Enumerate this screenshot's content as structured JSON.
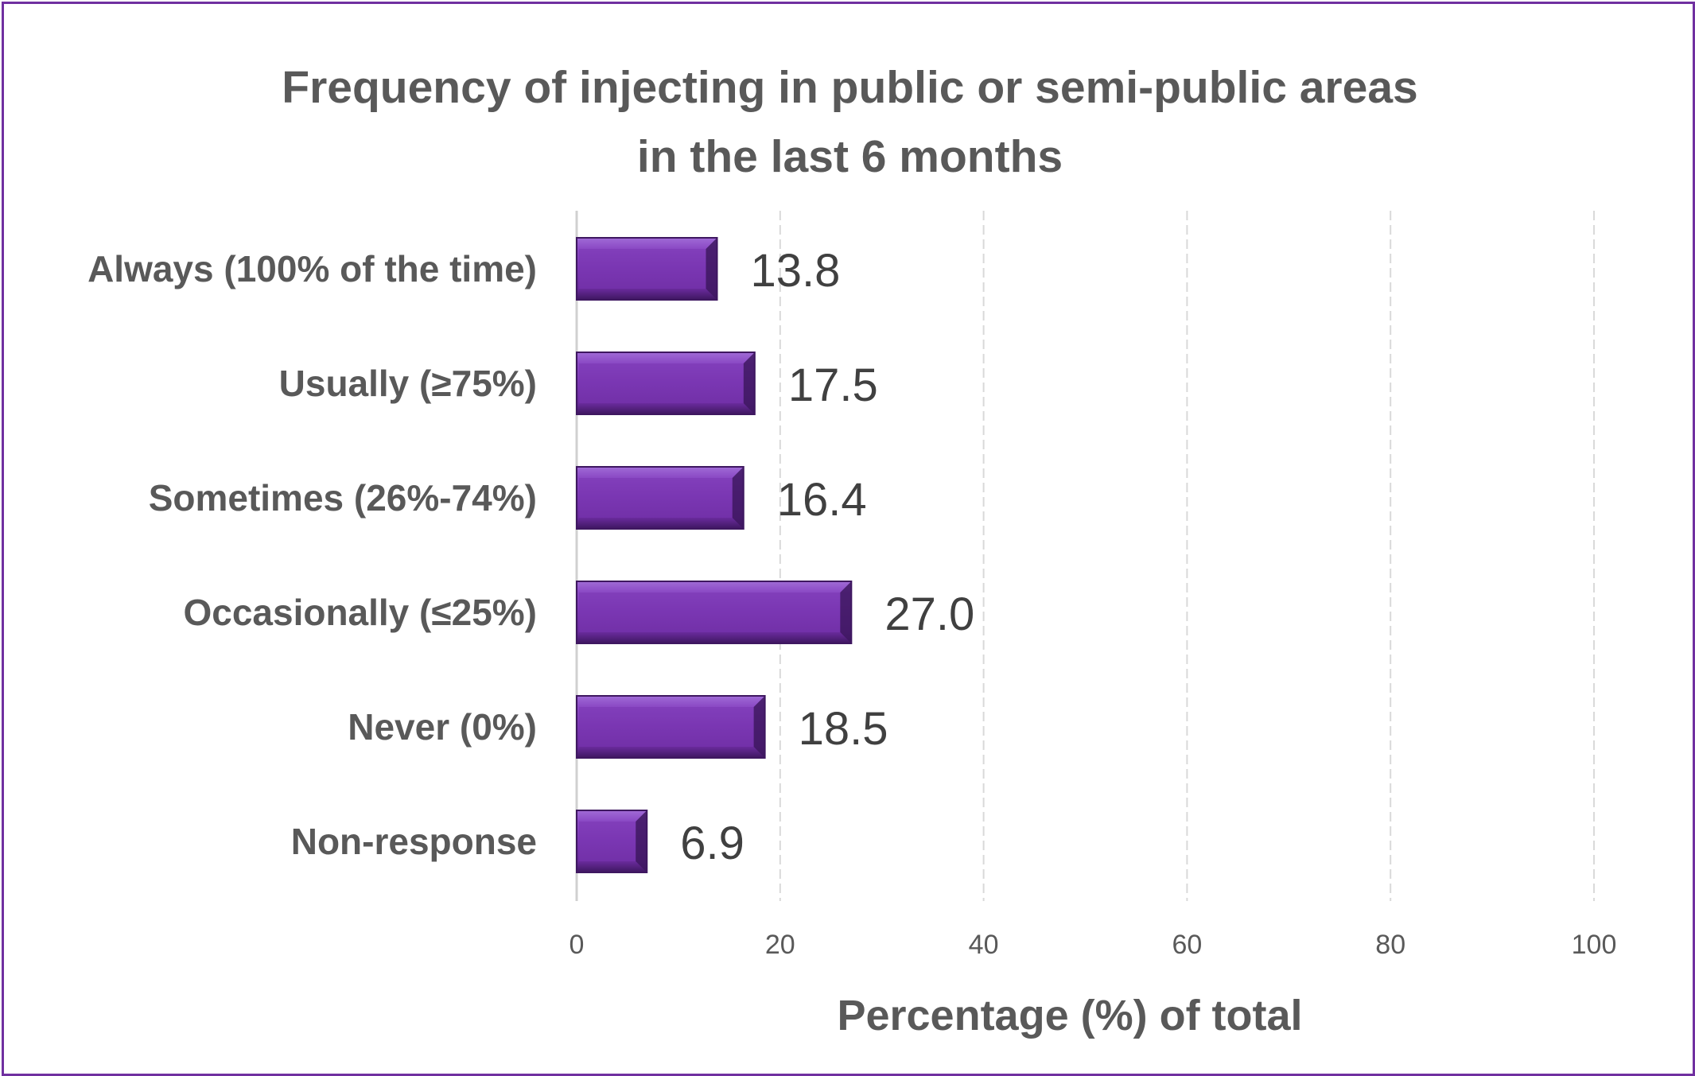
{
  "chart_data": {
    "type": "bar",
    "orientation": "horizontal",
    "title": "Frequency of injecting in public or semi-public areas\nin the last 6 months",
    "categories": [
      "Always (100% of the time)",
      "Usually (≥75%)",
      "Sometimes (26%-74%)",
      "Occasionally (≤25%)",
      "Never (0%)",
      "Non-response"
    ],
    "values": [
      13.8,
      17.5,
      16.4,
      27.0,
      18.5,
      6.9
    ],
    "value_labels": [
      "13.8",
      "17.5",
      "16.4",
      "27.0",
      "18.5",
      "6.9"
    ],
    "xlabel": "Percentage (%) of total",
    "ylabel": "",
    "xlim": [
      0,
      100
    ],
    "xticks": [
      0,
      20,
      40,
      60,
      80,
      100
    ],
    "grid": true,
    "legend": "none",
    "colors": {
      "bar": "#7030a0",
      "bar_highlight": "#9b5fd0",
      "bar_shadow": "#3e1760",
      "border": "#7030a0",
      "text": "#595959"
    }
  }
}
